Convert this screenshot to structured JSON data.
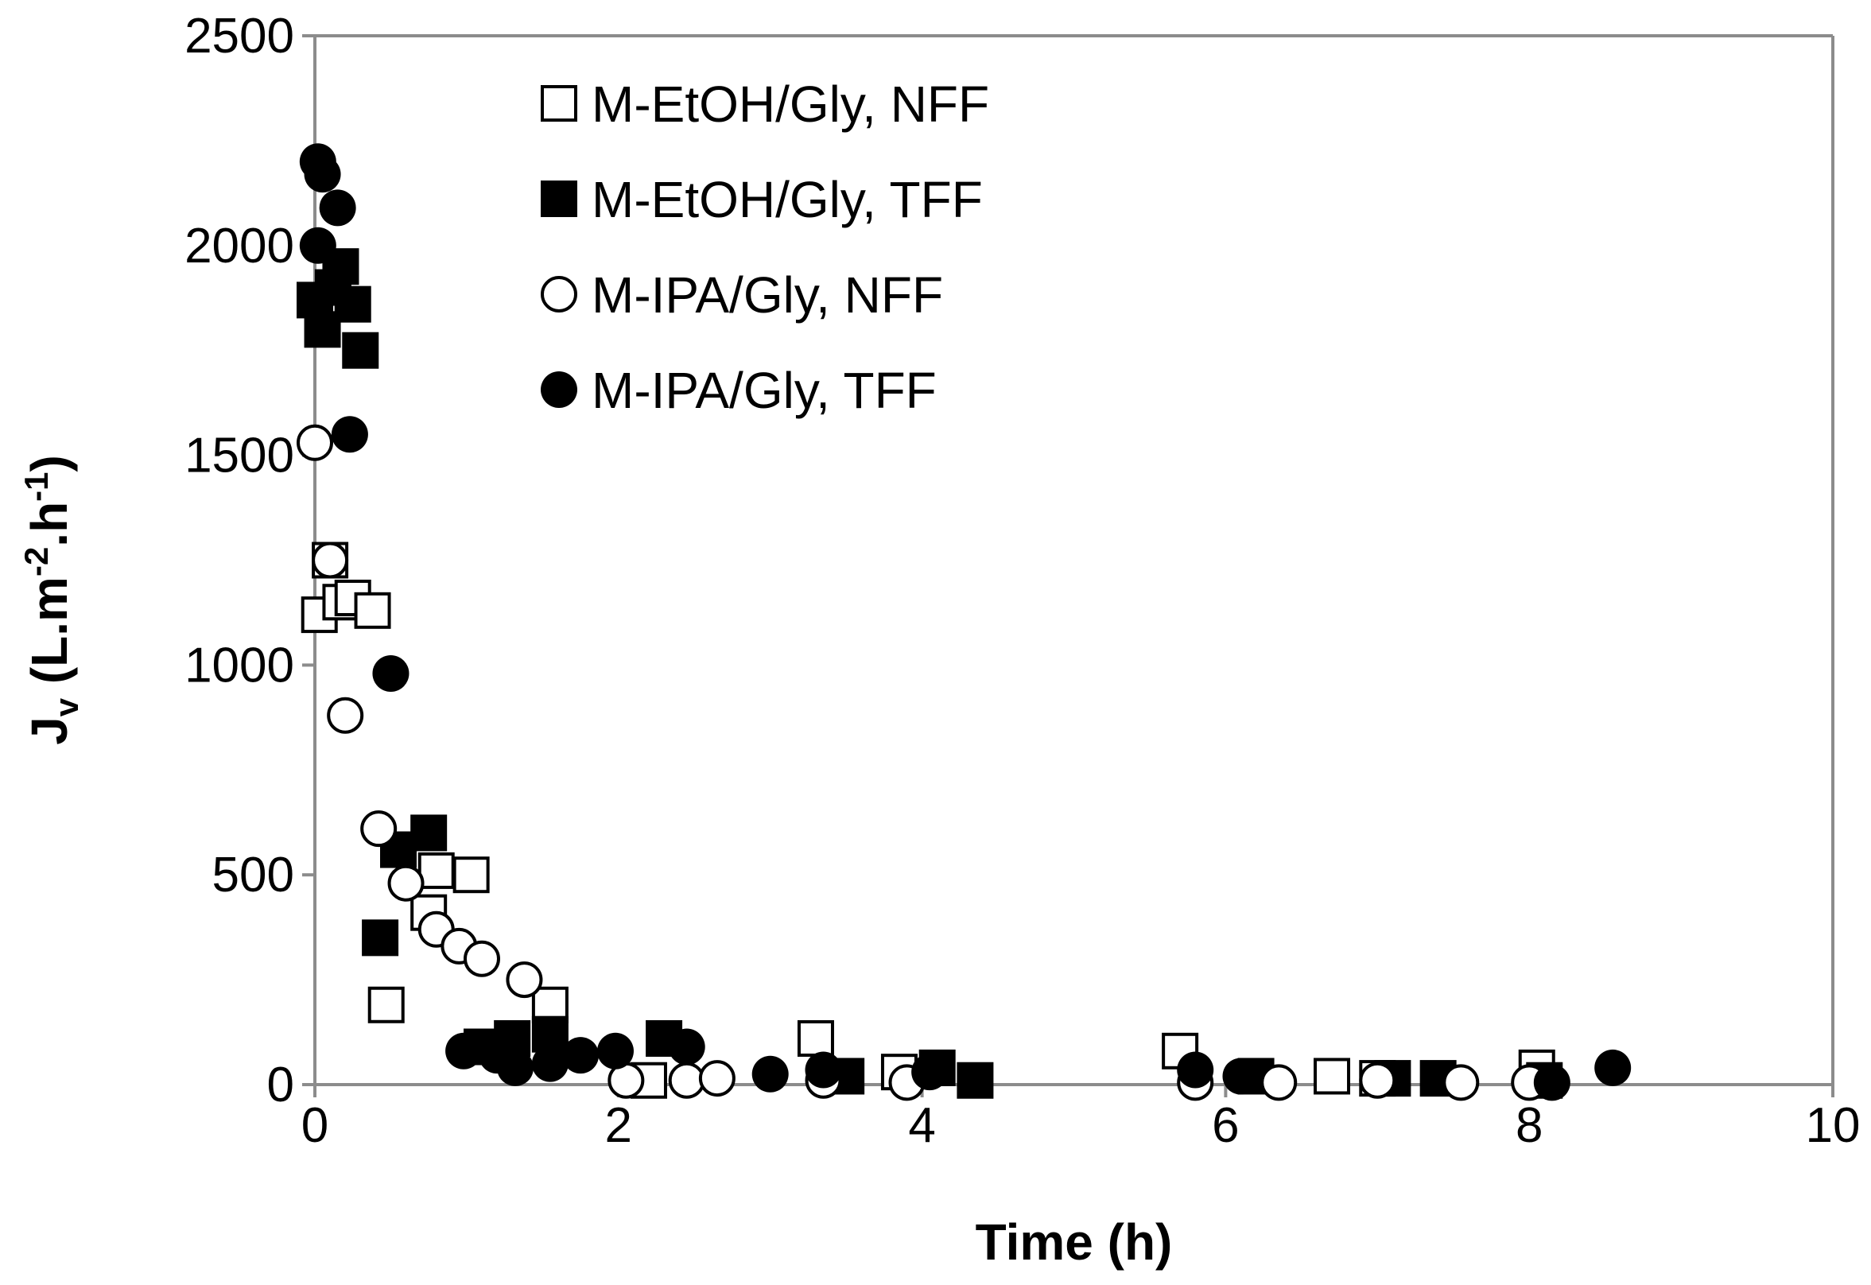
{
  "chart_data": {
    "type": "scatter",
    "title": "",
    "xlabel": "Time (h)",
    "ylabel": {
      "main": "J",
      "sub": "v",
      "unit_open": " (L.m",
      "sup1": "-2",
      "unit_mid": ".h",
      "sup2": "-1",
      "unit_close": ")"
    },
    "xlim": [
      0,
      10
    ],
    "ylim": [
      0,
      2500
    ],
    "xticks": [
      0,
      2,
      4,
      6,
      8,
      10
    ],
    "yticks": [
      0,
      500,
      1000,
      1500,
      2000,
      2500
    ],
    "xtick_labels": [
      "0",
      "2",
      "4",
      "6",
      "8",
      "10"
    ],
    "ytick_labels": [
      "0",
      "500",
      "1000",
      "1500",
      "2000",
      "2500"
    ],
    "grid": false,
    "legend_position": "top-left",
    "series": [
      {
        "name": "M-EtOH/Gly, NFF",
        "marker": "square-open",
        "points": [
          [
            0.03,
            1120
          ],
          [
            0.1,
            1250
          ],
          [
            0.17,
            1150
          ],
          [
            0.25,
            1160
          ],
          [
            0.38,
            1130
          ],
          [
            0.47,
            190
          ],
          [
            0.75,
            410
          ],
          [
            0.8,
            510
          ],
          [
            1.03,
            500
          ],
          [
            1.55,
            190
          ],
          [
            2.2,
            10
          ],
          [
            3.3,
            110
          ],
          [
            3.85,
            30
          ],
          [
            5.7,
            80
          ],
          [
            6.7,
            20
          ],
          [
            7.0,
            15
          ],
          [
            8.05,
            40
          ]
        ]
      },
      {
        "name": "M-EtOH/Gly, TFF",
        "marker": "square-filled",
        "points": [
          [
            0.0,
            1870
          ],
          [
            0.05,
            1800
          ],
          [
            0.12,
            1900
          ],
          [
            0.17,
            1950
          ],
          [
            0.25,
            1860
          ],
          [
            0.3,
            1750
          ],
          [
            0.43,
            350
          ],
          [
            0.55,
            560
          ],
          [
            0.75,
            600
          ],
          [
            1.1,
            90
          ],
          [
            1.3,
            110
          ],
          [
            1.55,
            120
          ],
          [
            2.3,
            110
          ],
          [
            3.5,
            20
          ],
          [
            4.1,
            40
          ],
          [
            4.35,
            10
          ],
          [
            6.2,
            20
          ],
          [
            7.1,
            15
          ],
          [
            7.4,
            15
          ],
          [
            8.1,
            10
          ]
        ]
      },
      {
        "name": "M-IPA/Gly, NFF",
        "marker": "circle-open",
        "points": [
          [
            0.0,
            1530
          ],
          [
            0.1,
            1250
          ],
          [
            0.2,
            880
          ],
          [
            0.42,
            610
          ],
          [
            0.6,
            480
          ],
          [
            0.8,
            370
          ],
          [
            0.95,
            330
          ],
          [
            1.1,
            300
          ],
          [
            1.38,
            250
          ],
          [
            2.05,
            10
          ],
          [
            2.45,
            10
          ],
          [
            2.65,
            15
          ],
          [
            3.35,
            10
          ],
          [
            3.9,
            5
          ],
          [
            5.8,
            5
          ],
          [
            6.35,
            5
          ],
          [
            7.0,
            10
          ],
          [
            7.55,
            5
          ],
          [
            8.0,
            5
          ]
        ]
      },
      {
        "name": "M-IPA/Gly, TFF",
        "marker": "circle-filled",
        "points": [
          [
            0.02,
            2200
          ],
          [
            0.05,
            2170
          ],
          [
            0.02,
            2000
          ],
          [
            0.15,
            2090
          ],
          [
            0.23,
            1550
          ],
          [
            0.5,
            980
          ],
          [
            0.98,
            80
          ],
          [
            1.2,
            70
          ],
          [
            1.32,
            40
          ],
          [
            1.55,
            50
          ],
          [
            1.75,
            70
          ],
          [
            1.98,
            80
          ],
          [
            2.45,
            90
          ],
          [
            3.0,
            25
          ],
          [
            3.35,
            35
          ],
          [
            4.05,
            30
          ],
          [
            5.8,
            35
          ],
          [
            6.1,
            20
          ],
          [
            8.55,
            40
          ],
          [
            8.15,
            5
          ]
        ]
      }
    ]
  }
}
